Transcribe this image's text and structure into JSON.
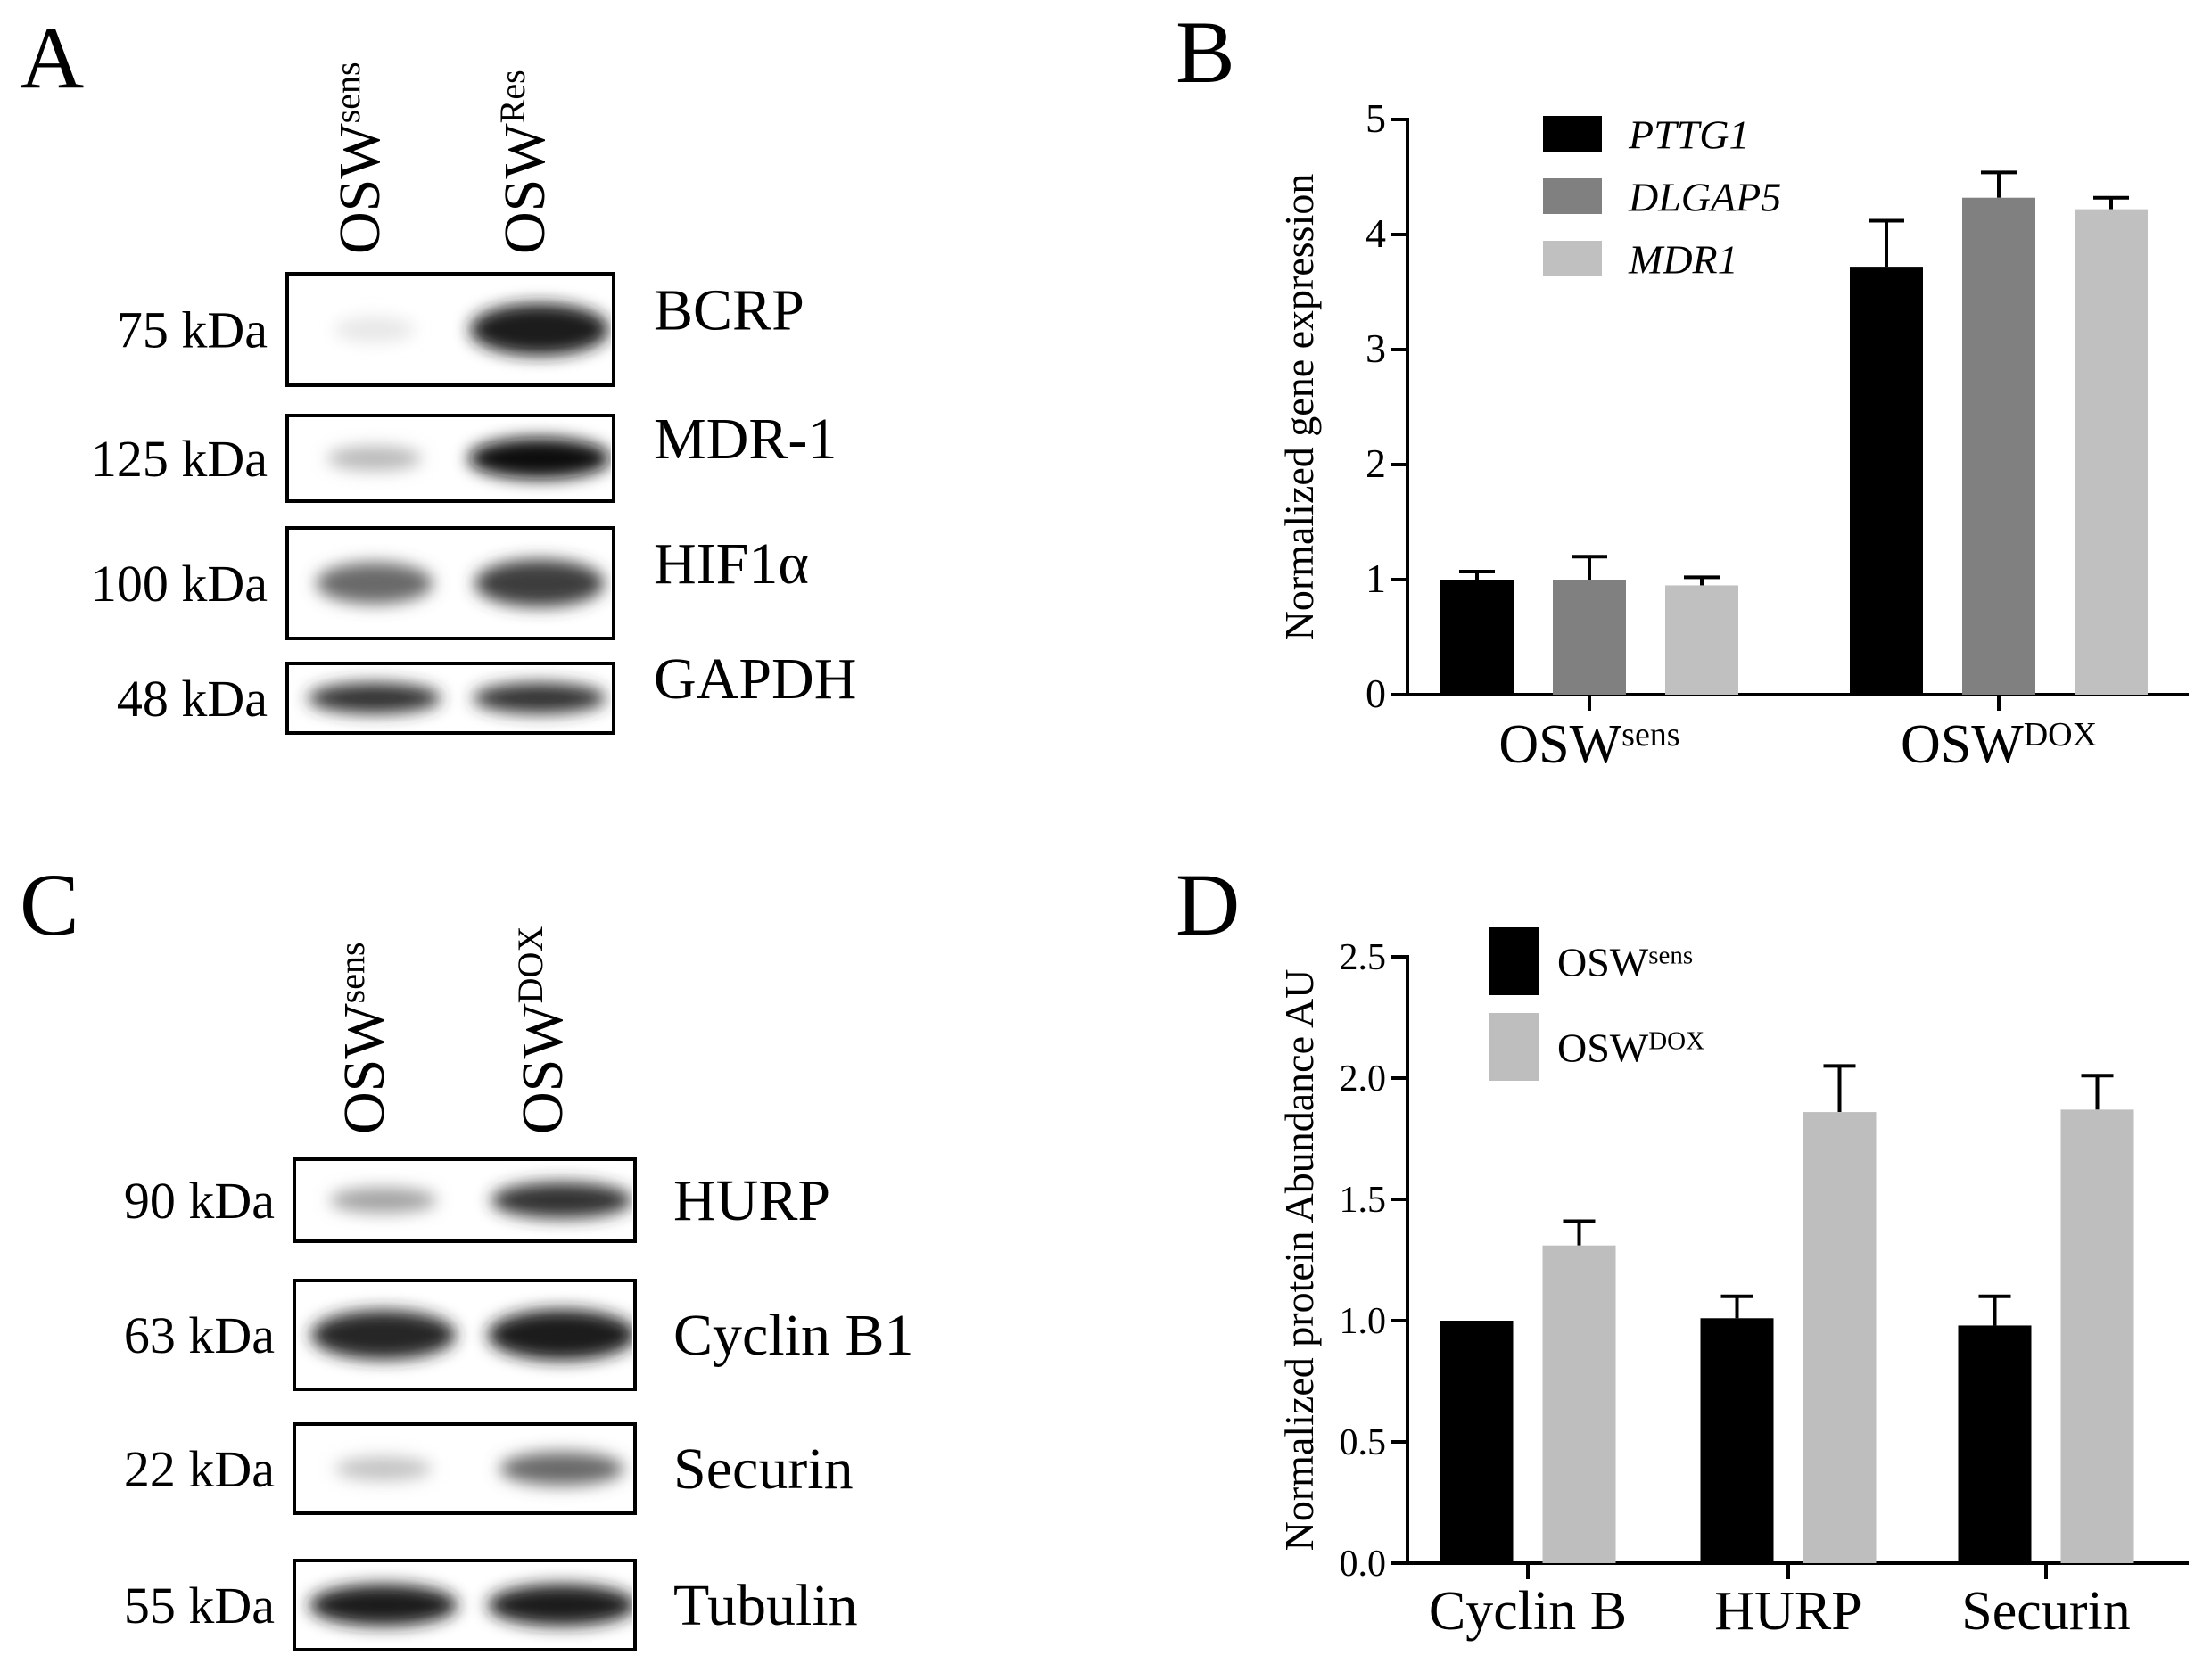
{
  "panels": {
    "A": {
      "letter": "A",
      "lanes": [
        {
          "base": "OSW",
          "sup": "sens"
        },
        {
          "base": "OSW",
          "sup": "Res"
        }
      ],
      "blots": [
        {
          "mw": "75 kDa",
          "protein": "BCRP",
          "bands": [
            0.04,
            0.95
          ]
        },
        {
          "mw": "125 kDa",
          "protein": "MDR-1",
          "bands": [
            0.25,
            1.0
          ]
        },
        {
          "mw": "100 kDa",
          "protein": "HIF1α",
          "bands": [
            0.6,
            0.8
          ]
        },
        {
          "mw": "48 kDa",
          "protein": "GAPDH",
          "bands": [
            0.85,
            0.85
          ]
        }
      ]
    },
    "C": {
      "letter": "C",
      "lanes": [
        {
          "base": "OSW",
          "sup": "sens"
        },
        {
          "base": "OSW",
          "sup": "DOX"
        }
      ],
      "blots": [
        {
          "mw": "90 kDa",
          "protein": "HURP",
          "bands": [
            0.35,
            0.85
          ]
        },
        {
          "mw": "63 kDa",
          "protein": "Cyclin B1",
          "bands": [
            0.9,
            0.95
          ]
        },
        {
          "mw": "22 kDa",
          "protein": "Securin",
          "bands": [
            0.2,
            0.6
          ]
        },
        {
          "mw": "55 kDa",
          "protein": "Tubulin",
          "bands": [
            0.95,
            0.95
          ]
        }
      ]
    }
  },
  "chart_data": [
    {
      "panel": "B",
      "type": "bar",
      "ylabel": "Normalized gene expression",
      "ylim": [
        0,
        5
      ],
      "yticks": [
        "0",
        "1",
        "2",
        "3",
        "4",
        "5"
      ],
      "categories": [
        {
          "base": "OSW",
          "sup": "sens"
        },
        {
          "base": "OSW",
          "sup": "DOX"
        }
      ],
      "series": [
        {
          "name": "PTTG1",
          "color": "#000000",
          "values": [
            1.0,
            3.72
          ],
          "errors": [
            0.07,
            0.4
          ]
        },
        {
          "name": "DLGAP5",
          "color": "#808080",
          "values": [
            1.0,
            4.32
          ],
          "errors": [
            0.2,
            0.22
          ]
        },
        {
          "name": "MDR1",
          "color": "#c0c0c0",
          "values": [
            0.95,
            4.22
          ],
          "errors": [
            0.07,
            0.1
          ]
        }
      ],
      "legend": "top-left, italic series names"
    },
    {
      "panel": "D",
      "type": "bar",
      "ylabel": "Normalized protein Abundance AU",
      "ylim": [
        0,
        2.5
      ],
      "yticks": [
        "0.0",
        "0.5",
        "1.0",
        "1.5",
        "2.0",
        "2.5"
      ],
      "categories": [
        "Cyclin B",
        "HURP",
        "Securin"
      ],
      "series": [
        {
          "name": {
            "base": "OSW",
            "sup": "sens"
          },
          "color": "#000000",
          "values": [
            1.0,
            1.01,
            0.98
          ],
          "errors": [
            0.0,
            0.09,
            0.12
          ]
        },
        {
          "name": {
            "base": "OSW",
            "sup": "DOX"
          },
          "color": "#bebebe",
          "values": [
            1.31,
            1.86,
            1.87
          ],
          "errors": [
            0.1,
            0.19,
            0.14
          ]
        }
      ],
      "legend": "top-left"
    }
  ]
}
